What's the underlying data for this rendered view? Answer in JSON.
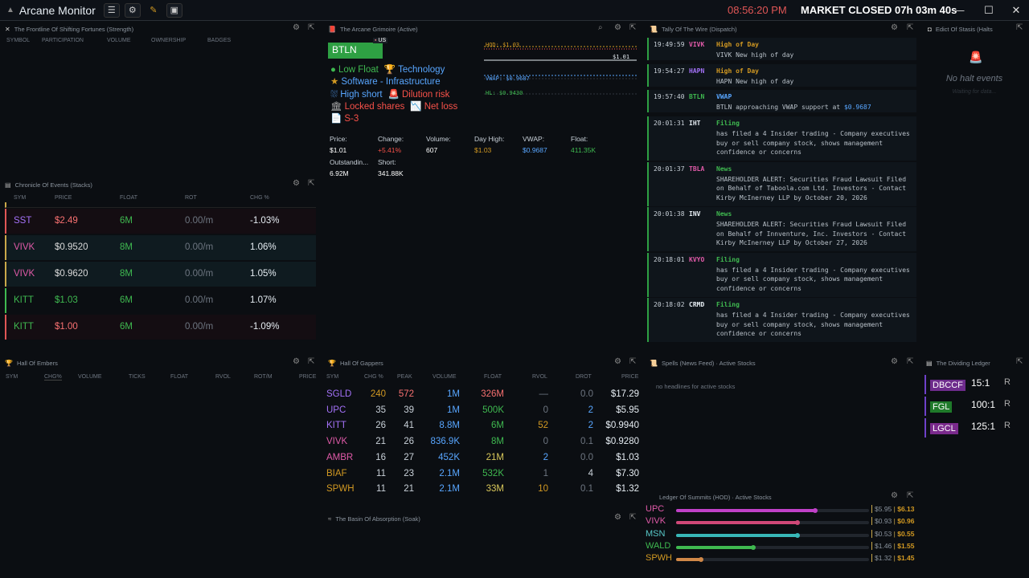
{
  "app": {
    "title": "Arcane Monitor",
    "clock": "08:56:20 PM",
    "market_status": "MARKET CLOSED",
    "countdown": "07h 03m 40s"
  },
  "strength": {
    "title": "The Frontline Of Shifting Fortunes (Strength)",
    "cols": [
      "SYMBOL",
      "PARTICIPATION",
      "VOLUME",
      "OWNERSHIP",
      "BADGES"
    ]
  },
  "stacks": {
    "title": "Chronicle Of Events (Stacks)",
    "cols": [
      "SYM",
      "PRICE",
      "FLOAT",
      "ROT",
      "CHG %"
    ],
    "rows": [
      {
        "sym": "SST",
        "price": "$2.49",
        "float": "6M",
        "rot": "0.00/m",
        "chg": "-1.03%",
        "symc": "#a371f7",
        "pc": "#f87171",
        "bar": "#e05656",
        "bg": "#140d12"
      },
      {
        "sym": "VIVK",
        "price": "$0.9520",
        "float": "8M",
        "rot": "0.00/m",
        "chg": "1.06%",
        "symc": "#e05aa8",
        "pc": "#d9d9d9",
        "bar": "#c9a84a",
        "bg": "#0f1b20"
      },
      {
        "sym": "VIVK",
        "price": "$0.9620",
        "float": "8M",
        "rot": "0.00/m",
        "chg": "1.05%",
        "symc": "#e05aa8",
        "pc": "#d9d9d9",
        "bar": "#c9a84a",
        "bg": "#0f1b20"
      },
      {
        "sym": "KITT",
        "price": "$1.03",
        "float": "6M",
        "rot": "0.00/m",
        "chg": "1.07%",
        "symc": "#3fb950",
        "pc": "#3fb950",
        "bar": "#3fb950",
        "bg": "#0b0e12"
      },
      {
        "sym": "KITT",
        "price": "$1.00",
        "float": "6M",
        "rot": "0.00/m",
        "chg": "-1.09%",
        "symc": "#3fb950",
        "pc": "#f87171",
        "bar": "#e05656",
        "bg": "#140d12"
      }
    ]
  },
  "grimoire": {
    "title": "The Arcane Grimoire (Active)",
    "symbol": "BTLN",
    "country": "US",
    "tags": [
      [
        "Low Float",
        "#3fb950"
      ],
      [
        "Technology",
        "#58a6ff"
      ],
      [
        "Software - Infrastructure",
        "#58a6ff"
      ],
      [
        "High short",
        "#58a6ff"
      ],
      [
        "Dilution risk",
        "#f85149"
      ],
      [
        "Locked shares",
        "#f85149"
      ],
      [
        "Net loss",
        "#f85149"
      ],
      [
        "S-3",
        "#f85149"
      ]
    ],
    "tag_icons": [
      "green-circle-icon",
      "trophy-icon",
      "star-icon",
      "shower-icon",
      "siren-icon",
      "bank-icon",
      "chart-down-icon",
      "document-icon"
    ],
    "stats": [
      [
        "Price:",
        "$1.01",
        "#ffffff"
      ],
      [
        "Change:",
        "+5.41%",
        "#f85149"
      ],
      [
        "Volume:",
        "607",
        "#ffffff"
      ],
      [
        "Day High:",
        "$1.03",
        "#d29922"
      ],
      [
        "VWAP:",
        "$0.9687",
        "#58a6ff"
      ],
      [
        "Float:",
        "411.35K",
        "#3fb950"
      ],
      [
        "Outstandin...",
        "6.92M",
        "#ffffff"
      ],
      [
        "Short:",
        "341.88K",
        "#ffffff"
      ]
    ],
    "mini": {
      "hod": "HOD: $1.03",
      "last": "$1.01",
      "vwap": "VWAP: $0.9687",
      "hl": "HL: $0.9430"
    }
  },
  "wire": {
    "title": "Tally Of The Wire (Dispatch)",
    "items": [
      {
        "time": "19:49:59",
        "sym": "VIVK",
        "kind": "High of Day",
        "msg": "VIVK New high of day",
        "sc": "#e05aa8",
        "kc": "#d29922",
        "h": 28
      },
      {
        "time": "19:54:27",
        "sym": "HAPN",
        "kind": "High of Day",
        "msg": "HAPN New high of day",
        "sc": "#a371f7",
        "kc": "#d29922",
        "h": 28
      },
      {
        "time": "19:57:40",
        "sym": "BTLN",
        "kind": "VWAP",
        "msg": "BTLN approaching VWAP support at ",
        "hl": "$0.9687",
        "sc": "#3fb950",
        "kc": "#58a6ff",
        "h": 28
      },
      {
        "time": "20:01:31",
        "sym": "IHT",
        "kind": "Filing",
        "msg": "has filed a 4 Insider trading - Company executives buy or sell company stock, shows management confidence or concerns",
        "sc": "#e6edf3",
        "kc": "#3fb950",
        "h": 52
      },
      {
        "time": "20:01:37",
        "sym": "TBLA",
        "kind": "News",
        "msg": "SHAREHOLDER ALERT: Securities Fraud Lawsuit Filed on Behalf of Taboola.com Ltd. Investors - Contact Kirby McInerney LLP by October 20, 2026",
        "sc": "#e05aa8",
        "kc": "#3fb950",
        "h": 52
      },
      {
        "time": "20:01:38",
        "sym": "INV",
        "kind": "News",
        "msg": "SHAREHOLDER ALERT: Securities Fraud Lawsuit Filed on Behalf of Innventure, Inc. Investors - Contact Kirby McInerney LLP by October 27, 2026",
        "sc": "#e6edf3",
        "kc": "#3fb950",
        "h": 52
      },
      {
        "time": "20:18:01",
        "sym": "KVYO",
        "kind": "Filing",
        "msg": "has filed a 4 Insider trading - Company executives buy or sell company stock, shows management confidence or concerns",
        "sc": "#e05aa8",
        "kc": "#3fb950",
        "h": 52
      },
      {
        "time": "20:18:02",
        "sym": "CRMD",
        "kind": "Filing",
        "msg": "has filed a 4 Insider trading - Company executives buy or sell company stock, shows management confidence or concerns",
        "sc": "#e6edf3",
        "kc": "#3fb950",
        "h": 52
      }
    ]
  },
  "halts": {
    "title": "Edict Of Stasis (Halts",
    "empty": "No halt events",
    "sub": "Waiting for data..."
  },
  "embers": {
    "title": "Hall Of Embers",
    "cols": [
      "SYM",
      "CHG%",
      "VOLUME",
      "TICKS",
      "FLOAT",
      "RVOL",
      "ROT/M",
      "PRICE"
    ]
  },
  "gappers": {
    "title": "Hall Of Gappers",
    "cols": [
      "SYM",
      "CHG %",
      "PEAK",
      "VOLUME",
      "FLOAT",
      "RVOL",
      "DROT",
      "PRICE"
    ],
    "rows": [
      {
        "sym": "SGLD",
        "chg": "240",
        "peak": "572",
        "vol": "1M",
        "float": "326M",
        "rvol": "—",
        "drot": "0.0",
        "price": "$17.29",
        "symc": "#a371f7",
        "chgc": "#d29922",
        "peakc": "#f87171",
        "floatc": "#f87171",
        "rvolc": "#6e7681",
        "drotc": "#6e7681"
      },
      {
        "sym": "UPC",
        "chg": "35",
        "peak": "39",
        "vol": "1M",
        "float": "500K",
        "rvol": "0",
        "drot": "2",
        "price": "$5.95",
        "symc": "#a371f7",
        "chgc": "#c9d1d9",
        "peakc": "#c9d1d9",
        "floatc": "#3fb950",
        "rvolc": "#6e7681",
        "drotc": "#58a6ff"
      },
      {
        "sym": "KITT",
        "chg": "26",
        "peak": "41",
        "vol": "8.8M",
        "float": "6M",
        "rvol": "52",
        "drot": "2",
        "price": "$0.9940",
        "symc": "#a371f7",
        "chgc": "#c9d1d9",
        "peakc": "#c9d1d9",
        "floatc": "#3fb950",
        "rvolc": "#d29922",
        "drotc": "#58a6ff"
      },
      {
        "sym": "VIVK",
        "chg": "21",
        "peak": "26",
        "vol": "836.9K",
        "float": "8M",
        "rvol": "0",
        "drot": "0.1",
        "price": "$0.9280",
        "symc": "#e05aa8",
        "chgc": "#c9d1d9",
        "peakc": "#c9d1d9",
        "floatc": "#3fb950",
        "rvolc": "#6e7681",
        "drotc": "#6e7681"
      },
      {
        "sym": "AMBR",
        "chg": "16",
        "peak": "27",
        "vol": "452K",
        "float": "21M",
        "rvol": "2",
        "drot": "0.0",
        "price": "$1.03",
        "symc": "#e05aa8",
        "chgc": "#c9d1d9",
        "peakc": "#c9d1d9",
        "floatc": "#d9c85a",
        "rvolc": "#58a6ff",
        "drotc": "#6e7681"
      },
      {
        "sym": "BIAF",
        "chg": "11",
        "peak": "23",
        "vol": "2.1M",
        "float": "532K",
        "rvol": "1",
        "drot": "4",
        "price": "$7.30",
        "symc": "#d29922",
        "chgc": "#c9d1d9",
        "peakc": "#c9d1d9",
        "floatc": "#3fb950",
        "rvolc": "#6e7681",
        "drotc": "#c9d1d9"
      },
      {
        "sym": "SPWH",
        "chg": "11",
        "peak": "21",
        "vol": "2.1M",
        "float": "33M",
        "rvol": "10",
        "drot": "0.1",
        "price": "$1.32",
        "symc": "#d29922",
        "chgc": "#c9d1d9",
        "peakc": "#c9d1d9",
        "floatc": "#d9c85a",
        "rvolc": "#d29922",
        "drotc": "#6e7681"
      }
    ]
  },
  "soak": {
    "title": "The Basin Of Absorption (Soak)"
  },
  "spells": {
    "title": "Spells (News Feed) · Active Stocks",
    "empty": "no headlines for active stocks"
  },
  "ledger": {
    "title": "The Dividing Ledger",
    "rows": [
      {
        "sym": "DBCCF",
        "ratio": "15:1",
        "r": "R",
        "bg": "#6e2c8c"
      },
      {
        "sym": "FGL",
        "ratio": "100:1",
        "r": "R",
        "bg": "#1f7a2a"
      },
      {
        "sym": "LGCL",
        "ratio": "125:1",
        "r": "R",
        "bg": "#7a2a8c"
      }
    ]
  },
  "summits": {
    "title": "Ledger Of Summits (HOD) · Active Stocks",
    "rows": [
      {
        "sym": "UPC",
        "lo": "$5.95",
        "hi": "$6.13",
        "pct": 0.72,
        "c": "#c040c8",
        "symc": "#e05aa8"
      },
      {
        "sym": "VIVK",
        "lo": "$0.93",
        "hi": "$0.96",
        "pct": 0.63,
        "c": "#d04878",
        "symc": "#e05aa8"
      },
      {
        "sym": "MSN",
        "lo": "$0.53",
        "hi": "$0.55",
        "pct": 0.63,
        "c": "#38b8b8",
        "symc": "#58c8c8"
      },
      {
        "sym": "WALD",
        "lo": "$1.46",
        "hi": "$1.55",
        "pct": 0.4,
        "c": "#3fb950",
        "symc": "#3fb950"
      },
      {
        "sym": "SPWH",
        "lo": "$1.32",
        "hi": "$1.45",
        "pct": 0.13,
        "c": "#d08848",
        "symc": "#d29922"
      }
    ]
  }
}
